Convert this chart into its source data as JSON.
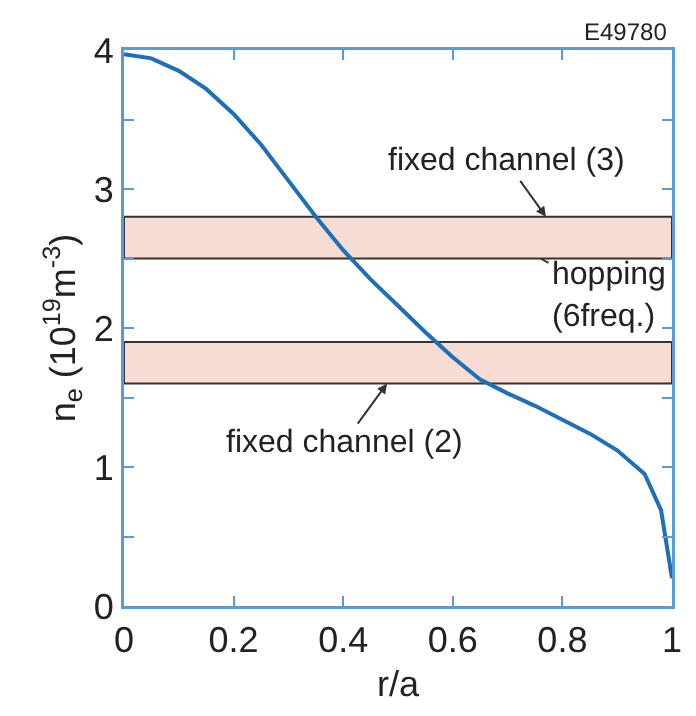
{
  "chart_data": {
    "type": "line",
    "xlabel": "r/a",
    "ylabel": "n$_{e}$ (10$^{19}$m$^{-3}$)",
    "x": [
      0,
      0.05,
      0.1,
      0.15,
      0.2,
      0.25,
      0.3,
      0.35,
      0.4,
      0.45,
      0.5,
      0.55,
      0.6,
      0.65,
      0.7,
      0.75,
      0.8,
      0.85,
      0.9,
      0.95,
      0.98,
      1.0
    ],
    "series": [
      {
        "color": "#1f6fb4",
        "values": [
          3.97,
          3.94,
          3.85,
          3.72,
          3.54,
          3.32,
          3.06,
          2.8,
          2.56,
          2.35,
          2.16,
          1.97,
          1.79,
          1.63,
          1.53,
          1.44,
          1.34,
          1.24,
          1.12,
          0.95,
          0.69,
          0.2
        ]
      }
    ],
    "xlim": [
      0,
      1
    ],
    "ylim": [
      0,
      4
    ],
    "xticks": [
      0,
      0.2,
      0.4,
      0.6,
      0.8,
      1
    ],
    "yticks": [
      0,
      {
        "value": 0.5,
        "label": null
      },
      1,
      {
        "value": 1.5,
        "label": null
      },
      2,
      {
        "value": 2.5,
        "label": null
      },
      3,
      {
        "value": 3.5,
        "label": null
      },
      4
    ],
    "bands": [
      {
        "axis": "y",
        "from": 2.5,
        "to": 2.8,
        "color": "#f6dcd2"
      },
      {
        "axis": "y",
        "from": 1.6,
        "to": 1.9,
        "color": "#f6dcd2"
      }
    ],
    "annotations": [
      "E49780",
      {
        "text": "fixed channel (3)",
        "x": 0.77,
        "y": 2.8
      },
      {
        "text": "hopping (6freq.)",
        "x": 0.76,
        "y": 2.5
      },
      {
        "text": "fixed channel (2)",
        "x": 0.48,
        "y": 1.6
      }
    ],
    "marker": "none",
    "line_style": "solid"
  }
}
